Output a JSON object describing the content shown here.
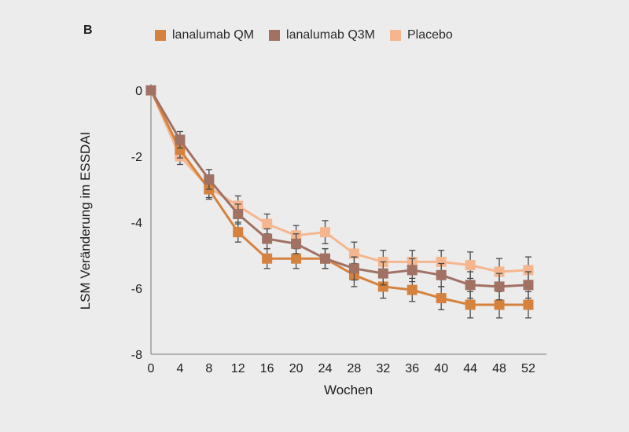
{
  "panel_label": "B",
  "chart_data": {
    "type": "line",
    "title": "",
    "xlabel": "Wochen",
    "ylabel": "LSM Veränderung im ESSDAI",
    "x": [
      0,
      4,
      8,
      12,
      16,
      20,
      24,
      28,
      32,
      36,
      40,
      44,
      48,
      52
    ],
    "yticks": [
      0,
      -2,
      -4,
      -6,
      -8
    ],
    "xlim": [
      0,
      54
    ],
    "ylim": [
      -8,
      0
    ],
    "grid": false,
    "legend_position": "top",
    "marker": "square",
    "series": [
      {
        "name": "lanalumab QM",
        "color": "#d5823e",
        "values": [
          0,
          -1.8,
          -3.0,
          -4.3,
          -5.1,
          -5.1,
          -5.1,
          -5.6,
          -5.95,
          -6.05,
          -6.3,
          -6.5,
          -6.5,
          -6.5
        ],
        "errors": [
          0,
          0.25,
          0.3,
          0.3,
          0.3,
          0.3,
          0.3,
          0.35,
          0.35,
          0.35,
          0.35,
          0.4,
          0.4,
          0.4
        ]
      },
      {
        "name": "lanalumab Q3M",
        "color": "#a17164",
        "values": [
          0,
          -1.5,
          -2.7,
          -3.75,
          -4.5,
          -4.65,
          -5.1,
          -5.4,
          -5.55,
          -5.45,
          -5.6,
          -5.9,
          -5.95,
          -5.9
        ],
        "errors": [
          0,
          0.25,
          0.3,
          0.3,
          0.3,
          0.3,
          0.3,
          0.35,
          0.35,
          0.35,
          0.35,
          0.4,
          0.4,
          0.4
        ]
      },
      {
        "name": "Placebo",
        "color": "#f5b68f",
        "values": [
          0,
          -2.0,
          -2.95,
          -3.5,
          -4.05,
          -4.4,
          -4.3,
          -4.95,
          -5.2,
          -5.2,
          -5.2,
          -5.3,
          -5.5,
          -5.45
        ],
        "errors": [
          0,
          0.25,
          0.3,
          0.3,
          0.3,
          0.3,
          0.35,
          0.35,
          0.35,
          0.35,
          0.35,
          0.4,
          0.4,
          0.4
        ]
      }
    ],
    "draw_order": [
      2,
      0,
      1
    ],
    "colors": {
      "background": "#ececec",
      "axis": "#9b9b9b",
      "error_bar": "#4a4a4a",
      "text": "#1c1c1c"
    }
  }
}
